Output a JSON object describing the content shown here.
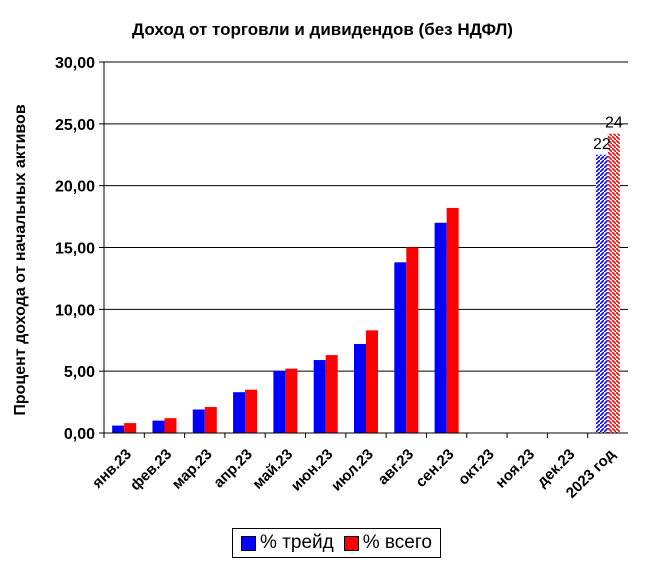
{
  "chart_data": {
    "type": "bar",
    "title": "Доход от торговли и дивидендов (без НДФЛ)",
    "ylabel": "Процент дохода от начальных активов",
    "xlabel": "",
    "ylim": [
      0,
      30
    ],
    "yticks": [
      "0,00",
      "5,00",
      "10,00",
      "15,00",
      "20,00",
      "25,00",
      "30,00"
    ],
    "grid": true,
    "legend_placement": "bottom",
    "categories": [
      "янв.23",
      "фев.23",
      "мар.23",
      "апр.23",
      "май.23",
      "июн.23",
      "июл.23",
      "авг.23",
      "сен.23",
      "окт.23",
      "ноя.23",
      "дек.23",
      "2023 год"
    ],
    "series": [
      {
        "name": "% трейд",
        "color": "#0000FF",
        "values": [
          0.6,
          1.0,
          1.9,
          3.3,
          5.0,
          5.9,
          7.2,
          13.8,
          17.0,
          null,
          null,
          null,
          22.5
        ]
      },
      {
        "name": "% всего",
        "color": "#FF0000",
        "values": [
          0.8,
          1.2,
          2.1,
          3.5,
          5.2,
          6.3,
          8.3,
          15.0,
          18.2,
          null,
          null,
          null,
          24.2
        ]
      }
    ],
    "annotations": [
      {
        "category": "2023 год",
        "series": "% трейд",
        "text": "22"
      },
      {
        "category": "2023 год",
        "series": "% всего",
        "text": "24"
      }
    ]
  }
}
